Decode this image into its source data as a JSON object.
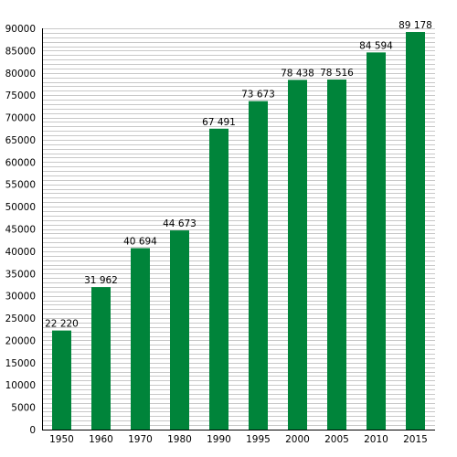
{
  "chart_data": {
    "type": "bar",
    "title": "",
    "xlabel": "",
    "ylabel": "",
    "categories": [
      "1950",
      "1960",
      "1970",
      "1980",
      "1990",
      "1995",
      "2000",
      "2005",
      "2010",
      "2015"
    ],
    "values": [
      22220,
      31962,
      40694,
      44673,
      67491,
      73673,
      78438,
      78516,
      84594,
      89178
    ],
    "value_labels": [
      "22 220",
      "31 962",
      "40 694",
      "44 673",
      "67 491",
      "73 673",
      "78 438",
      "78 516",
      "84 594",
      "89 178"
    ],
    "ylim": [
      0,
      90000
    ],
    "y_ticks": [
      0,
      5000,
      10000,
      15000,
      20000,
      25000,
      30000,
      35000,
      40000,
      45000,
      50000,
      55000,
      60000,
      65000,
      70000,
      75000,
      80000,
      85000,
      90000
    ],
    "minor_grid_step": 1000,
    "grid": true,
    "bar_color": "#00843a",
    "grid_color": "#c8c8c8"
  }
}
